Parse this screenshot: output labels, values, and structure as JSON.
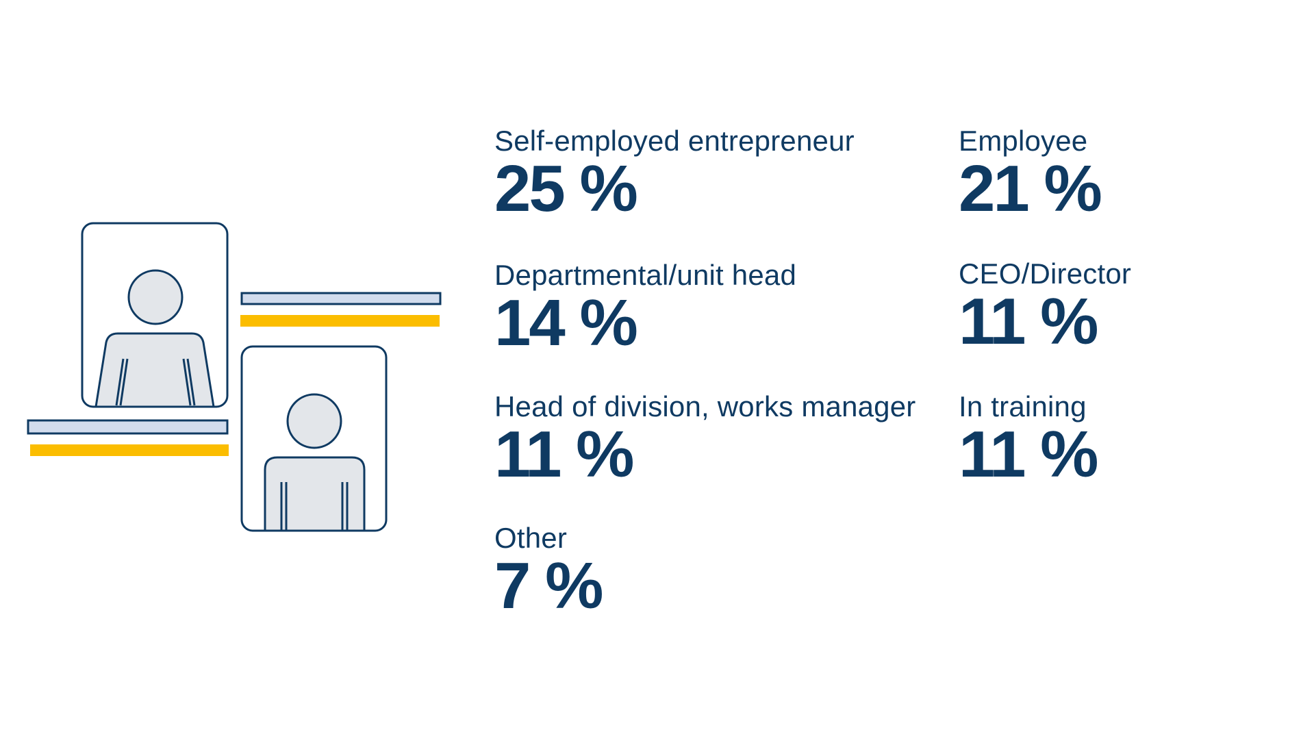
{
  "stats": [
    {
      "label": "Self-employed entrepreneur",
      "value": "25 %"
    },
    {
      "label": "Employee",
      "value": "21 %"
    },
    {
      "label": "Departmental/unit head",
      "value": "14 %"
    },
    {
      "label": "CEO/Director",
      "value": "11 %"
    },
    {
      "label": "Head of division, works manager",
      "value": "11 %"
    },
    {
      "label": "In training",
      "value": "11 %"
    },
    {
      "label": "Other",
      "value": "7 %"
    }
  ],
  "colors": {
    "navy": "#0f3a62",
    "accent_yellow": "#fbbd00",
    "figure_fill": "#e3e6ea",
    "shelf_fill": "#d2dced"
  },
  "icons": [
    "person-frame-icon",
    "person-frame-icon"
  ]
}
